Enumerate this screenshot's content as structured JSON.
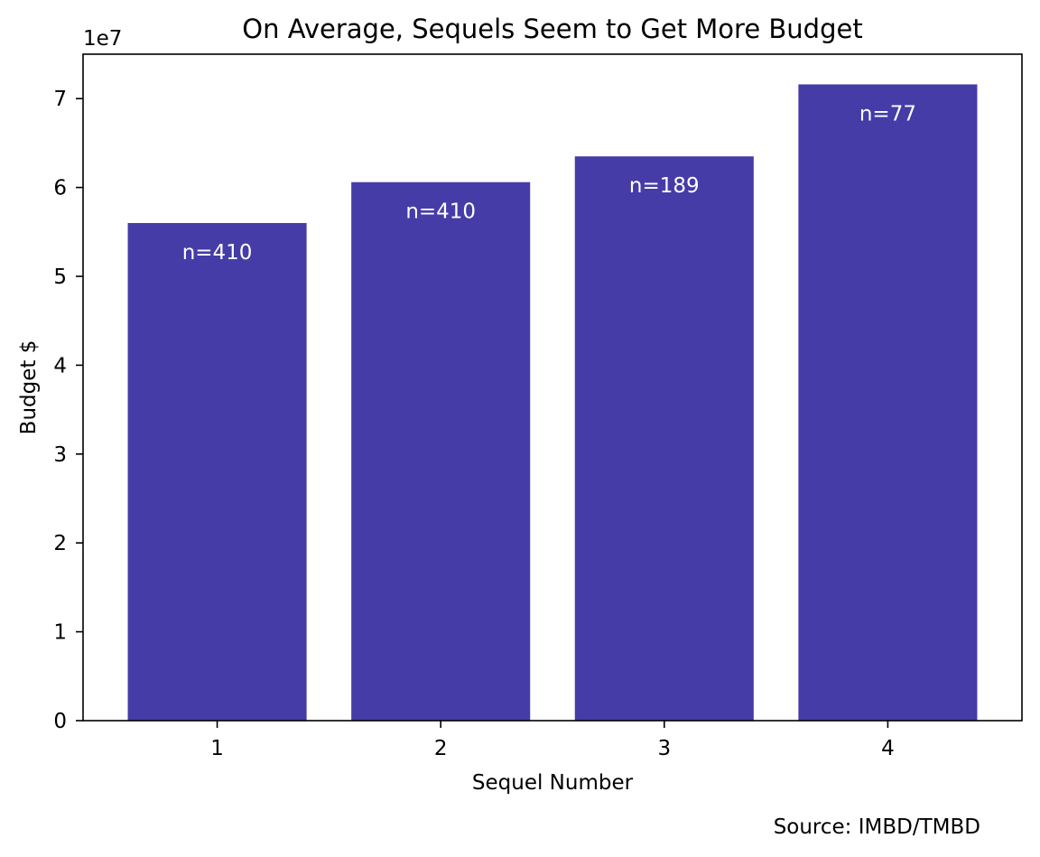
{
  "chart_data": {
    "type": "bar",
    "title": "On Average, Sequels Seem to Get More Budget",
    "xlabel": "Sequel Number",
    "ylabel": "Budget $",
    "y_offset_label": "1e7",
    "y_scale": 10000000,
    "categories": [
      "1",
      "2",
      "3",
      "4"
    ],
    "values": [
      56000000,
      60600000,
      63500000,
      71600000
    ],
    "bar_labels": [
      "n=410",
      "n=410",
      "n=189",
      "n=77"
    ],
    "ylim": [
      0,
      75000000
    ],
    "yticks": [
      0,
      1,
      2,
      3,
      4,
      5,
      6,
      7
    ],
    "bar_color": "#453ca8",
    "grid": false,
    "legend": "none",
    "annotation": "Source: IMBD/TMBD"
  }
}
